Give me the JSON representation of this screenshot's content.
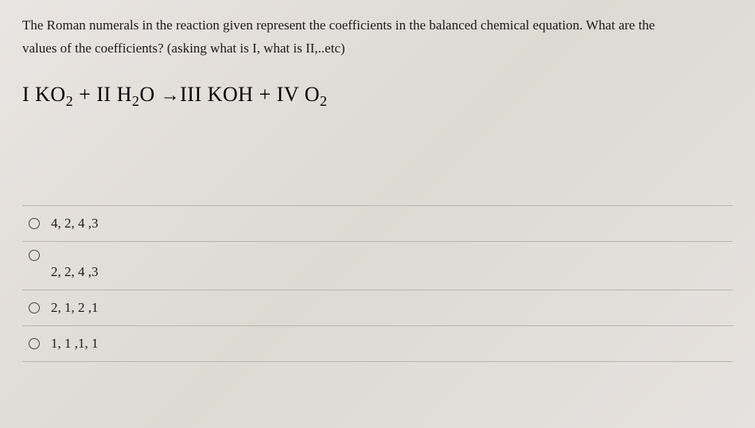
{
  "question": {
    "line1": "The Roman numerals in the reaction given represent the coefficients in the balanced chemical equation. What are the",
    "line2": "values of the coefficients? (asking what is I, what is II,..etc)"
  },
  "equation": {
    "part1": "I KO",
    "sub1": "2",
    "part2": " + II H",
    "sub2": "2",
    "part3": "O ",
    "arrow": "→",
    "part4": "III KOH + IV O",
    "sub3": "2"
  },
  "options": [
    {
      "label": "4, 2, 4 ,3",
      "selected": false
    },
    {
      "label": "2, 2, 4 ,3",
      "selected": false
    },
    {
      "label": "2, 1, 2 ,1",
      "selected": false
    },
    {
      "label": "1, 1 ,1, 1",
      "selected": false
    }
  ],
  "styling": {
    "background_color": "#e5e3df",
    "text_color": "#1a1a1a",
    "divider_color": "#b8b5b0",
    "question_fontsize": 17,
    "equation_fontsize": 26,
    "option_fontsize": 17
  }
}
